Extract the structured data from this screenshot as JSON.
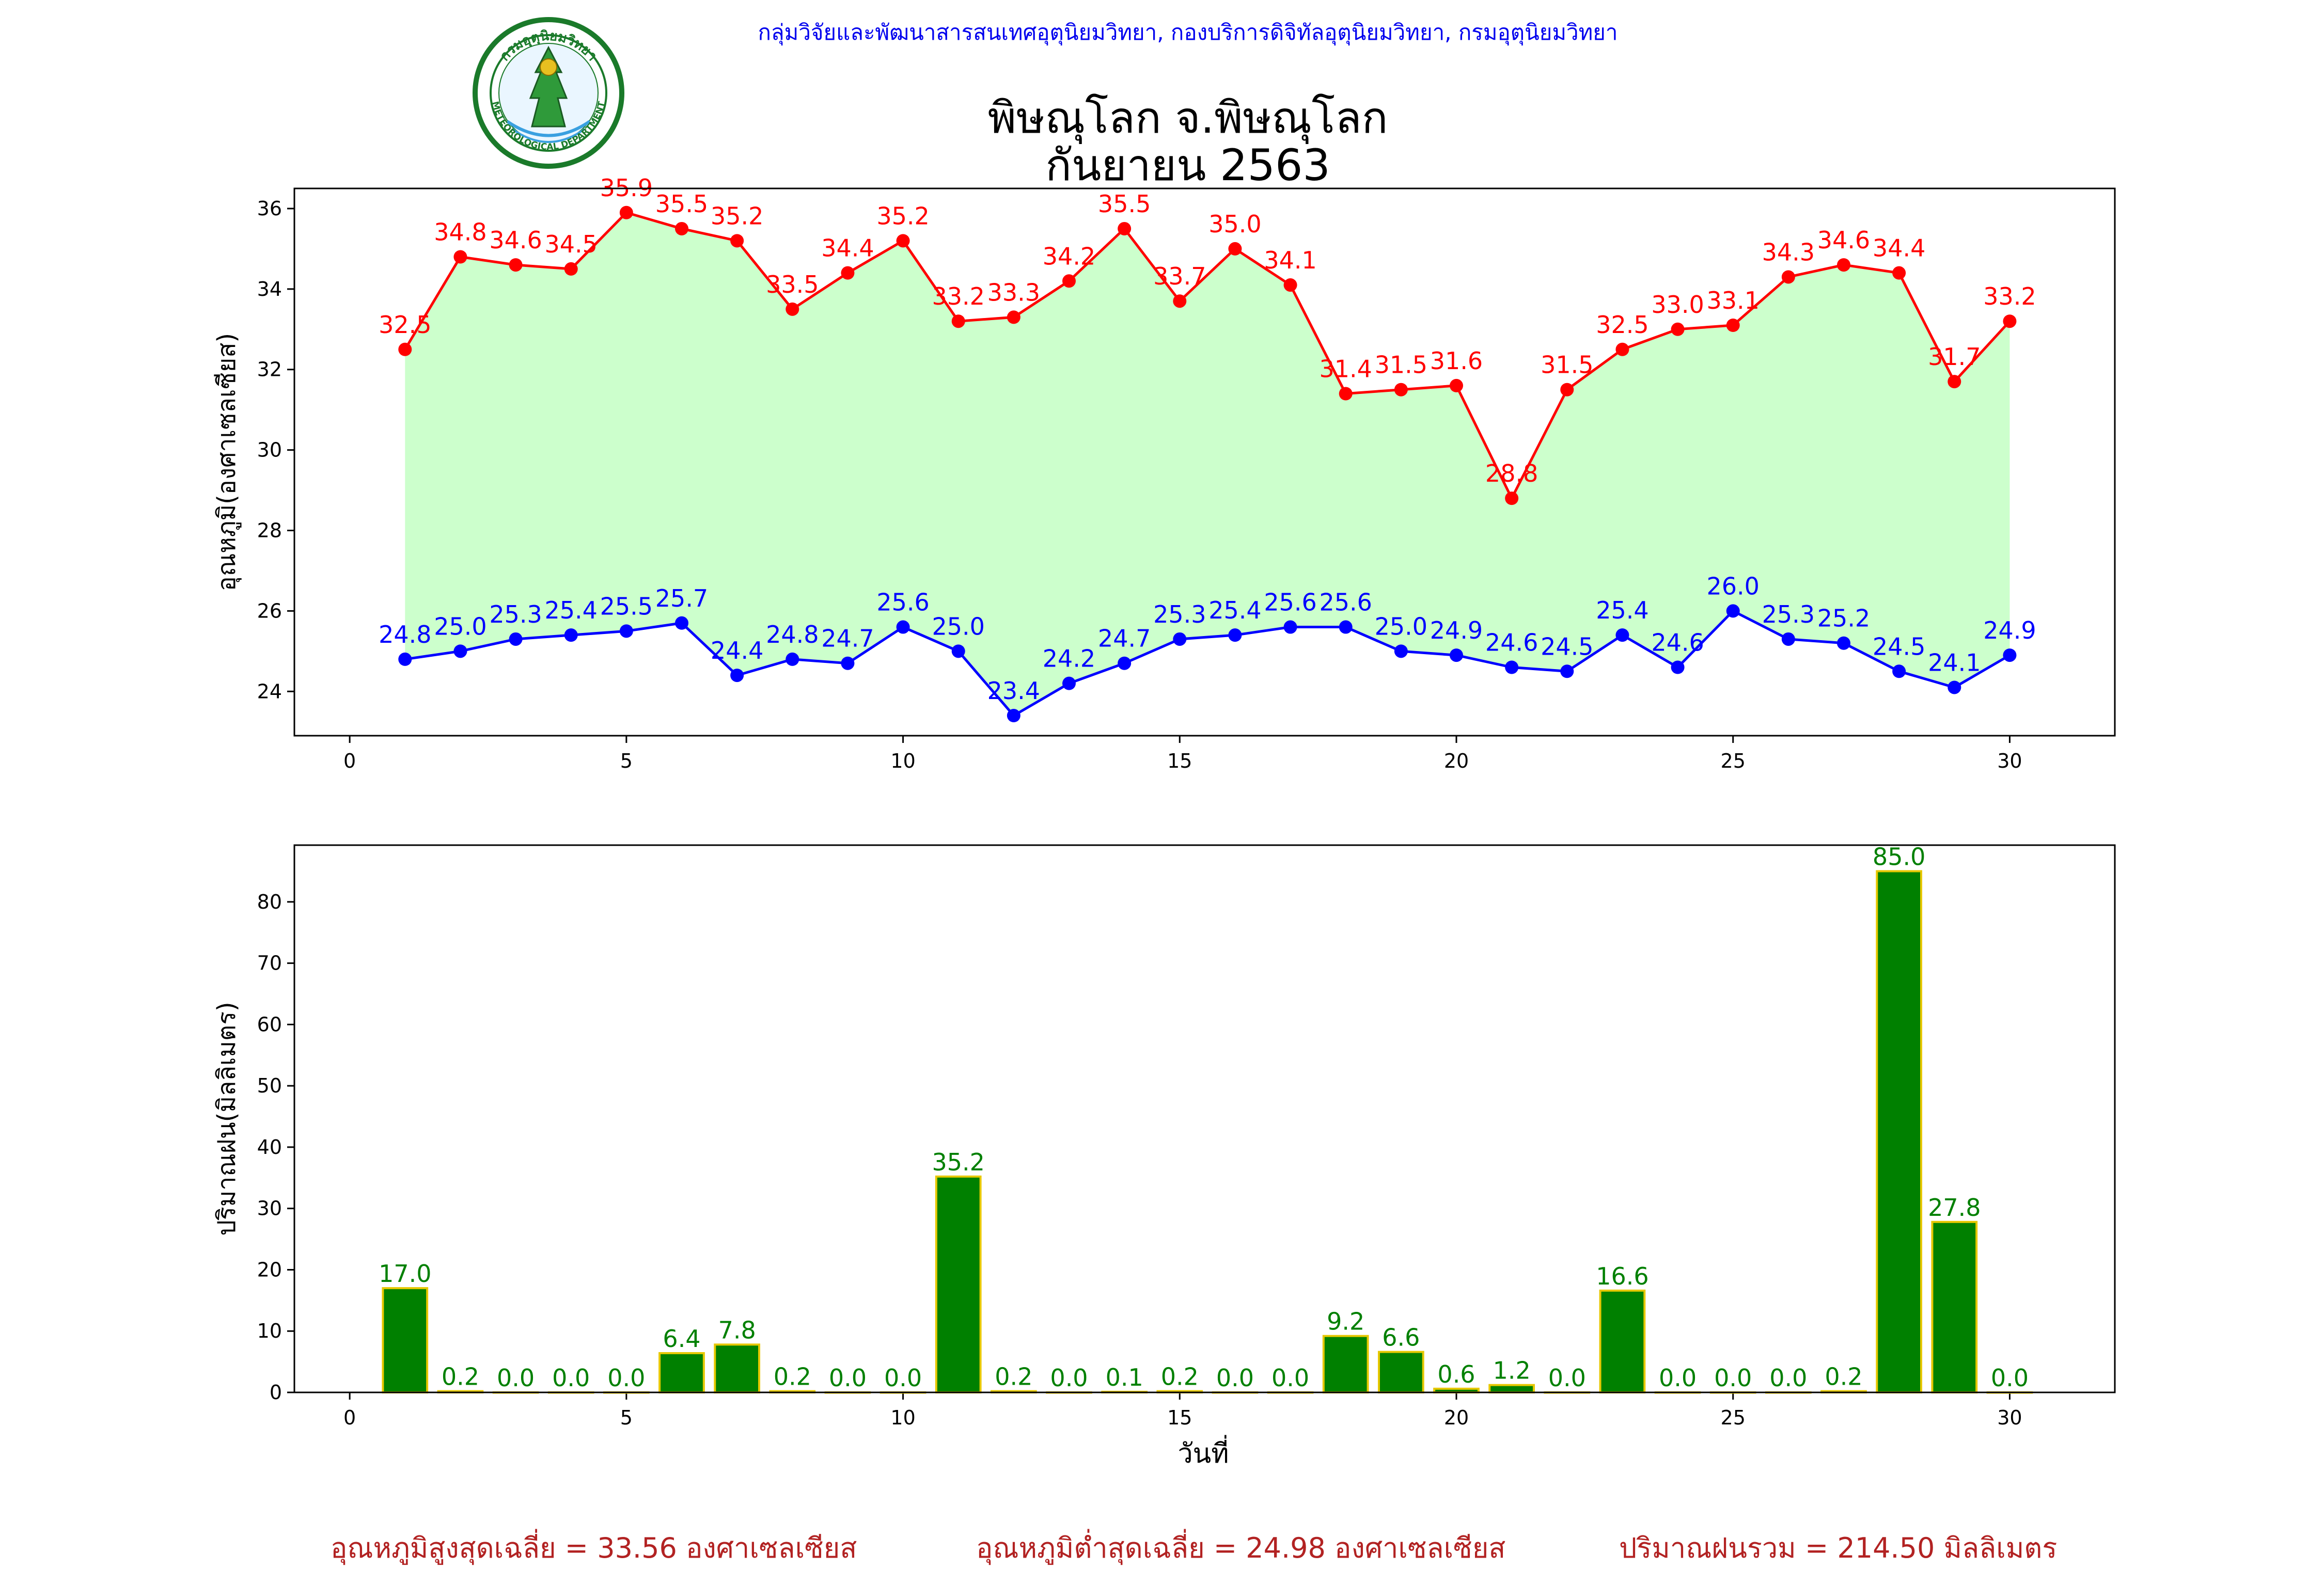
{
  "header": {
    "org_line": "กลุ่มวิจัยและพัฒนาสารสนเทศอุตุนิยมวิทยา, กองบริการดิจิทัลอุตุนิยมวิทยา, กรมอุตุนิยมวิทยา",
    "title_line1": "พิษณุโลก จ.พิษณุโลก",
    "title_line2": "กันยายน 2563",
    "logo_text_top": "กรมอุตุนิยมวิทยา",
    "logo_text_bottom": "METEOROLOGICAL DEPARTMENT"
  },
  "colors": {
    "max_temp": "#ff0000",
    "min_temp": "#0000ff",
    "fill": "#ccffcc",
    "rain_bar": "#008000",
    "rain_edge": "#e6c800",
    "summary": "#b22222",
    "header": "#0000ee"
  },
  "chart_data": [
    {
      "type": "line",
      "ylabel": "อุณหภูมิ(องศาเซลเซียส)",
      "xlabel": "",
      "xlim": [
        -1,
        31.9
      ],
      "ylim": [
        22.9,
        36.5
      ],
      "xticks": [
        0,
        5,
        10,
        15,
        20,
        25,
        30
      ],
      "yticks": [
        24,
        26,
        28,
        30,
        32,
        34,
        36
      ],
      "x": [
        1,
        2,
        3,
        4,
        5,
        6,
        7,
        8,
        9,
        10,
        11,
        12,
        13,
        14,
        15,
        16,
        17,
        18,
        19,
        20,
        21,
        22,
        23,
        24,
        25,
        26,
        27,
        28,
        29,
        30
      ],
      "series": [
        {
          "key": "max",
          "values": [
            32.5,
            34.8,
            34.6,
            34.5,
            35.9,
            35.5,
            35.2,
            33.5,
            34.4,
            35.2,
            33.2,
            33.3,
            34.2,
            35.5,
            33.7,
            35.0,
            34.1,
            31.4,
            31.5,
            31.6,
            28.8,
            31.5,
            32.5,
            33.0,
            33.1,
            34.3,
            34.6,
            34.4,
            31.7,
            33.2
          ]
        },
        {
          "key": "min",
          "values": [
            24.8,
            25.0,
            25.3,
            25.4,
            25.5,
            25.7,
            24.4,
            24.8,
            24.7,
            25.6,
            25.0,
            23.4,
            24.2,
            24.7,
            25.3,
            25.4,
            25.6,
            25.6,
            25.0,
            24.9,
            24.6,
            24.5,
            25.4,
            24.6,
            26.0,
            25.3,
            25.2,
            24.5,
            24.1,
            24.9
          ]
        }
      ]
    },
    {
      "type": "bar",
      "ylabel": "ปริมาณฝน(มิลลิเมตร)",
      "xlabel": "วันที่",
      "xlim": [
        -1,
        31.9
      ],
      "ylim": [
        0,
        89.25
      ],
      "xticks": [
        0,
        5,
        10,
        15,
        20,
        25,
        30
      ],
      "yticks": [
        0,
        10,
        20,
        30,
        40,
        50,
        60,
        70,
        80
      ],
      "x": [
        1,
        2,
        3,
        4,
        5,
        6,
        7,
        8,
        9,
        10,
        11,
        12,
        13,
        14,
        15,
        16,
        17,
        18,
        19,
        20,
        21,
        22,
        23,
        24,
        25,
        26,
        27,
        28,
        29,
        30
      ],
      "values": [
        17.0,
        0.2,
        0.0,
        0.0,
        0.0,
        6.4,
        7.8,
        0.2,
        0.0,
        0.0,
        35.2,
        0.2,
        0.0,
        0.1,
        0.2,
        0.0,
        0.0,
        9.2,
        6.6,
        0.6,
        1.2,
        0.0,
        16.6,
        0.0,
        0.0,
        0.0,
        0.2,
        85.0,
        27.8,
        0.0
      ]
    }
  ],
  "summary": {
    "avg_max": "อุณหภูมิสูงสุดเฉลี่ย = 33.56 องศาเซลเซียส",
    "avg_min": "อุณหภูมิต่ำสุดเฉลี่ย = 24.98 องศาเซลเซียส",
    "total_rain": "ปริมาณฝนรวม = 214.50 มิลลิเมตร"
  }
}
